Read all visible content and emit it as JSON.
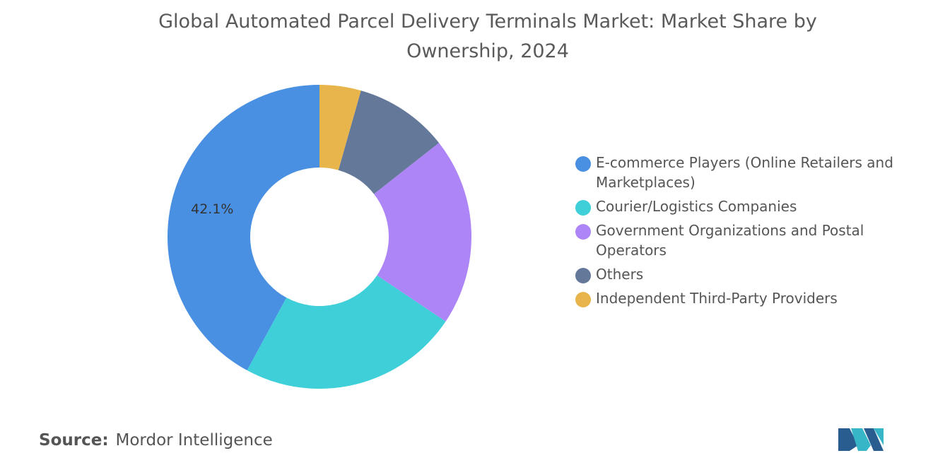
{
  "chart_data": {
    "type": "donut",
    "title": "Global Automated Parcel Delivery Terminals Market: Market Share by Ownership, 2024",
    "categories": [
      "E-commerce Players (Online Retailers and Marketplaces)",
      "Courier/Logistics Companies",
      "Government Organizations and Postal Operators",
      "Others",
      "Independent Third-Party Providers"
    ],
    "values": [
      42.1,
      23.5,
      20.0,
      10.0,
      4.4
    ],
    "value_labels": [
      "42.1%",
      null,
      null,
      null,
      null
    ],
    "colors": [
      "#4a90e2",
      "#3ecfd8",
      "#ad85f7",
      "#64789a",
      "#e8b54c"
    ],
    "legend": "right",
    "source_label": "Source:",
    "source": "Mordor Intelligence"
  }
}
